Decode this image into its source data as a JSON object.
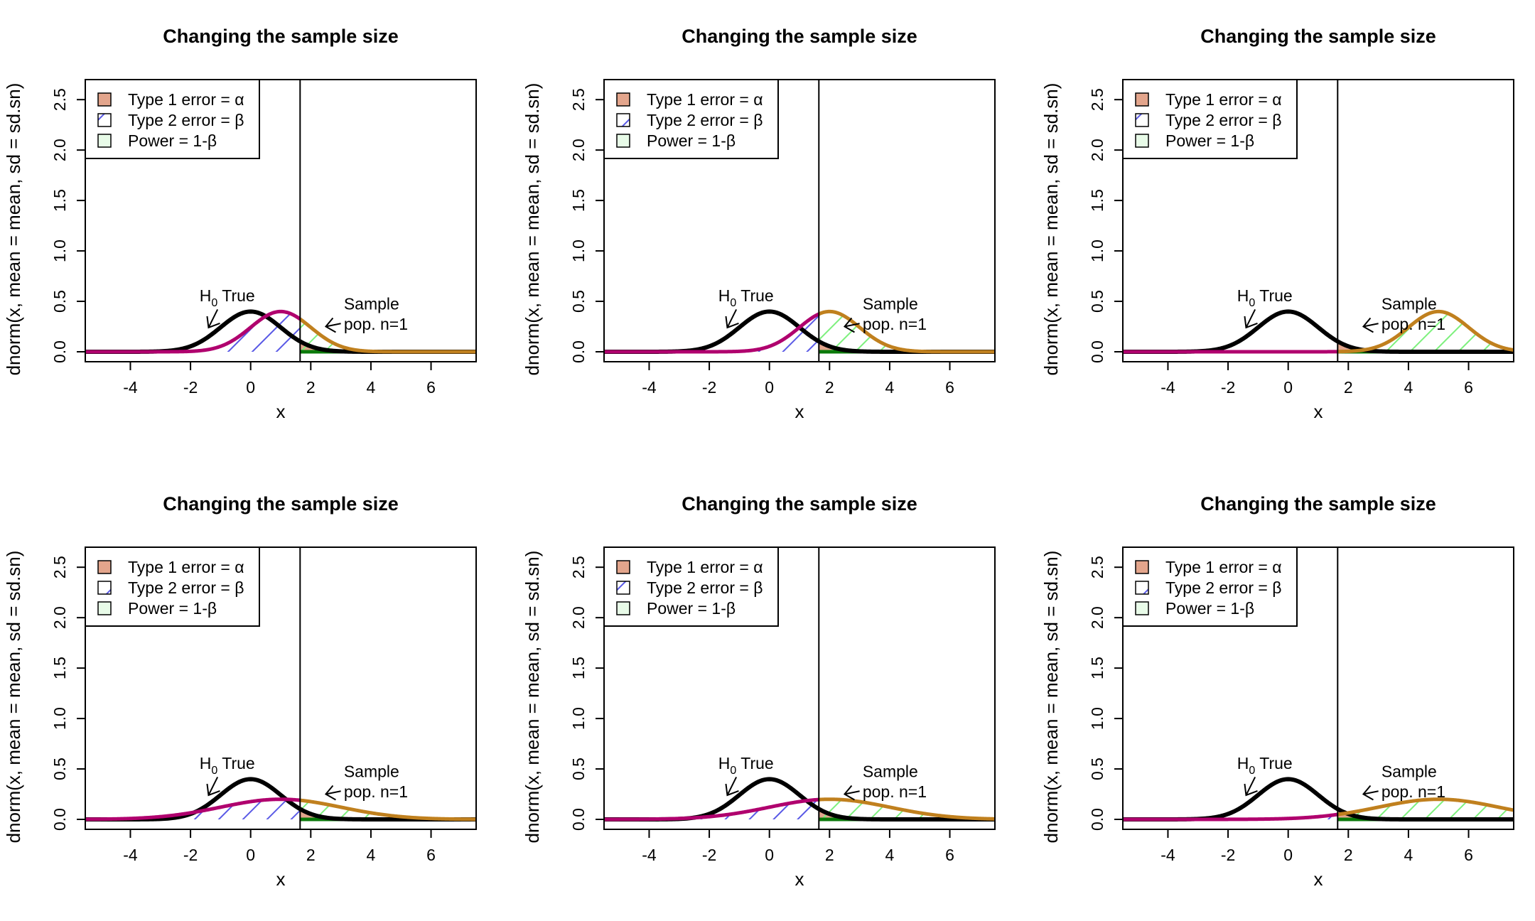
{
  "chart_data": [
    {
      "type": "line",
      "title": "Changing the sample size",
      "xlabel": "x",
      "ylabel": "dnorm(x, mean = mean, sd = sd.sn)",
      "xlim": [
        -5.5,
        7.5
      ],
      "ylim": [
        0,
        2.6
      ],
      "xticks": [
        "-4",
        "-2",
        "0",
        "2",
        "4",
        "6"
      ],
      "yticks": [
        "0.0",
        "0.5",
        "1.0",
        "1.5",
        "2.0",
        "2.5"
      ],
      "critical_value": 1.645,
      "series": [
        {
          "name": "H0 True",
          "mean": 0,
          "sd": 1
        },
        {
          "name": "Sample pop. n=1",
          "mean": 1,
          "sd": 1
        }
      ],
      "legend": [
        "Type 1 error = α",
        "Type 2 error = β",
        "Power = 1-β"
      ],
      "legend_position": "top-left",
      "annotations": {
        "h0": "H",
        "h0_sub": "0",
        "h0_rest": " True",
        "sample_line1": "Sample",
        "sample_line2": "pop. n=1"
      }
    },
    {
      "type": "line",
      "title": "Changing the sample size",
      "xlabel": "x",
      "ylabel": "dnorm(x, mean = mean, sd = sd.sn)",
      "xlim": [
        -5.5,
        7.5
      ],
      "ylim": [
        0,
        2.6
      ],
      "xticks": [
        "-4",
        "-2",
        "0",
        "2",
        "4",
        "6"
      ],
      "yticks": [
        "0.0",
        "0.5",
        "1.0",
        "1.5",
        "2.0",
        "2.5"
      ],
      "critical_value": 1.645,
      "series": [
        {
          "name": "H0 True",
          "mean": 0,
          "sd": 1
        },
        {
          "name": "Sample pop. n=1",
          "mean": 2,
          "sd": 1
        }
      ],
      "legend": [
        "Type 1 error = α",
        "Type 2 error = β",
        "Power = 1-β"
      ],
      "legend_position": "top-left",
      "annotations": {
        "h0": "H",
        "h0_sub": "0",
        "h0_rest": " True",
        "sample_line1": "Sample",
        "sample_line2": "pop. n=1"
      }
    },
    {
      "type": "line",
      "title": "Changing the sample size",
      "xlabel": "x",
      "ylabel": "dnorm(x, mean = mean, sd = sd.sn)",
      "xlim": [
        -5.5,
        7.5
      ],
      "ylim": [
        0,
        2.6
      ],
      "xticks": [
        "-4",
        "-2",
        "0",
        "2",
        "4",
        "6"
      ],
      "yticks": [
        "0.0",
        "0.5",
        "1.0",
        "1.5",
        "2.0",
        "2.5"
      ],
      "critical_value": 1.645,
      "series": [
        {
          "name": "H0 True",
          "mean": 0,
          "sd": 1
        },
        {
          "name": "Sample pop. n=1",
          "mean": 5,
          "sd": 1
        }
      ],
      "legend": [
        "Type 1 error = α",
        "Type 2 error = β",
        "Power = 1-β"
      ],
      "legend_position": "top-left",
      "annotations": {
        "h0": "H",
        "h0_sub": "0",
        "h0_rest": " True",
        "sample_line1": "Sample",
        "sample_line2": "pop. n=1"
      }
    },
    {
      "type": "line",
      "title": "Changing the sample size",
      "xlabel": "x",
      "ylabel": "dnorm(x, mean = mean, sd = sd.sn)",
      "xlim": [
        -5.5,
        7.5
      ],
      "ylim": [
        0,
        2.6
      ],
      "xticks": [
        "-4",
        "-2",
        "0",
        "2",
        "4",
        "6"
      ],
      "yticks": [
        "0.0",
        "0.5",
        "1.0",
        "1.5",
        "2.0",
        "2.5"
      ],
      "critical_value": 1.645,
      "series": [
        {
          "name": "H0 True",
          "mean": 0,
          "sd": 1
        },
        {
          "name": "Sample pop. n=1",
          "mean": 1,
          "sd": 2
        }
      ],
      "legend": [
        "Type 1 error = α",
        "Type 2 error = β",
        "Power = 1-β"
      ],
      "legend_position": "top-left",
      "annotations": {
        "h0": "H",
        "h0_sub": "0",
        "h0_rest": " True",
        "sample_line1": "Sample",
        "sample_line2": "pop. n=1"
      }
    },
    {
      "type": "line",
      "title": "Changing the sample size",
      "xlabel": "x",
      "ylabel": "dnorm(x, mean = mean, sd = sd.sn)",
      "xlim": [
        -5.5,
        7.5
      ],
      "ylim": [
        0,
        2.6
      ],
      "xticks": [
        "-4",
        "-2",
        "0",
        "2",
        "4",
        "6"
      ],
      "yticks": [
        "0.0",
        "0.5",
        "1.0",
        "1.5",
        "2.0",
        "2.5"
      ],
      "critical_value": 1.645,
      "series": [
        {
          "name": "H0 True",
          "mean": 0,
          "sd": 1
        },
        {
          "name": "Sample pop. n=1",
          "mean": 2,
          "sd": 2
        }
      ],
      "legend": [
        "Type 1 error = α",
        "Type 2 error = β",
        "Power = 1-β"
      ],
      "legend_position": "top-left",
      "annotations": {
        "h0": "H",
        "h0_sub": "0",
        "h0_rest": " True",
        "sample_line1": "Sample",
        "sample_line2": "pop. n=1"
      }
    },
    {
      "type": "line",
      "title": "Changing the sample size",
      "xlabel": "x",
      "ylabel": "dnorm(x, mean = mean, sd = sd.sn)",
      "xlim": [
        -5.5,
        7.5
      ],
      "ylim": [
        0,
        2.6
      ],
      "xticks": [
        "-4",
        "-2",
        "0",
        "2",
        "4",
        "6"
      ],
      "yticks": [
        "0.0",
        "0.5",
        "1.0",
        "1.5",
        "2.0",
        "2.5"
      ],
      "critical_value": 1.645,
      "series": [
        {
          "name": "H0 True",
          "mean": 0,
          "sd": 1
        },
        {
          "name": "Sample pop. n=1",
          "mean": 5,
          "sd": 2
        }
      ],
      "legend": [
        "Type 1 error = α",
        "Type 2 error = β",
        "Power = 1-β"
      ],
      "legend_position": "top-left",
      "annotations": {
        "h0": "H",
        "h0_sub": "0",
        "h0_rest": " True",
        "sample_line1": "Sample",
        "sample_line2": "pop. n=1"
      }
    }
  ],
  "colors": {
    "type1_fill": "#e3a58c",
    "type2_hatch": "#5a5ae6",
    "power_hatch": "#7ef07e",
    "h0_curve": "#000000",
    "sample_curve": "#b0006e",
    "sample_curve_power": "#c0801e",
    "power_baseline": "#0a7a0a"
  }
}
